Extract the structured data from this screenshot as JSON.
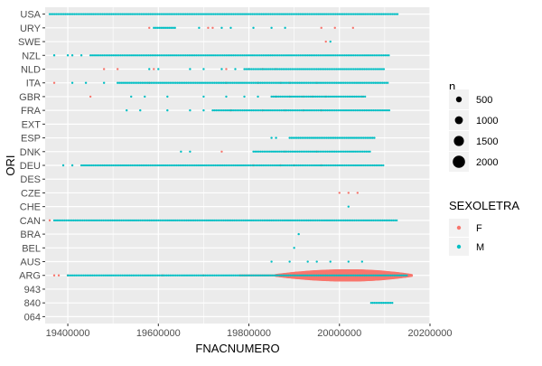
{
  "chart_data": {
    "type": "scatter",
    "xlabel": "FNACNUMERO",
    "ylabel": "ORI",
    "xlim": [
      19350000,
      20200000
    ],
    "x_ticks": [
      19400000,
      19600000,
      19800000,
      20000000,
      20200000
    ],
    "x_tick_labels": [
      "19400000",
      "19600000",
      "19800000",
      "20000000",
      "20200000"
    ],
    "categories": [
      "USA",
      "URY",
      "SWE",
      "NZL",
      "NLD",
      "ITA",
      "GBR",
      "FRA",
      "EXT",
      "ESP",
      "DNK",
      "DEU",
      "DES",
      "CZE",
      "CHE",
      "CAN",
      "BRA",
      "BEL",
      "AUS",
      "ARG",
      "943",
      "840",
      "064"
    ],
    "grid": true,
    "legends": {
      "size": {
        "title": "n",
        "entries": [
          {
            "label": "500",
            "value": 500
          },
          {
            "label": "1000",
            "value": 1000
          },
          {
            "label": "1500",
            "value": 1500
          },
          {
            "label": "2000",
            "value": 2000
          }
        ]
      },
      "color": {
        "title": "SEXOLETRA",
        "entries": [
          {
            "label": "F",
            "color": "#F8766D"
          },
          {
            "label": "M",
            "color": "#00BFC4"
          }
        ]
      },
      "placement": "right"
    },
    "series": [
      {
        "name": "M",
        "color": "#00BFC4",
        "rows": [
          {
            "category": "USA",
            "ranges": [
              [
                19360000,
                20130000
              ]
            ]
          },
          {
            "category": "URY",
            "ranges": [
              [
                19590000,
                19640000
              ]
            ],
            "points": [
              19690000,
              19740000,
              19760000,
              19810000,
              19850000,
              19880000
            ]
          },
          {
            "category": "SWE",
            "points": [
              19980000
            ]
          },
          {
            "category": "NZL",
            "points": [
              19370000,
              19400000,
              19410000,
              19430000
            ],
            "ranges": [
              [
                19450000,
                20110000
              ]
            ]
          },
          {
            "category": "NLD",
            "points": [
              19580000,
              19600000,
              19670000,
              19700000,
              19740000,
              19770000
            ],
            "ranges": [
              [
                19790000,
                20100000
              ]
            ]
          },
          {
            "category": "ITA",
            "points": [
              19410000,
              19440000,
              19480000
            ],
            "ranges": [
              [
                19510000,
                20110000
              ]
            ]
          },
          {
            "category": "GBR",
            "points": [
              19540000,
              19570000,
              19620000,
              19700000,
              19750000,
              19790000,
              19820000
            ],
            "ranges": [
              [
                19850000,
                20060000
              ]
            ]
          },
          {
            "category": "FRA",
            "points": [
              19530000,
              19560000,
              19620000,
              19670000,
              19700000
            ],
            "ranges": [
              [
                19720000,
                20110000
              ]
            ]
          },
          {
            "category": "ESP",
            "points": [
              19850000,
              19860000
            ],
            "ranges": [
              [
                19890000,
                20080000
              ]
            ]
          },
          {
            "category": "DNK",
            "points": [
              19650000,
              19670000
            ],
            "ranges": [
              [
                19810000,
                20070000
              ]
            ]
          },
          {
            "category": "DEU",
            "points": [
              19390000,
              19410000
            ],
            "ranges": [
              [
                19430000,
                20100000
              ]
            ]
          },
          {
            "category": "CHE",
            "points": [
              20020000
            ]
          },
          {
            "category": "CAN",
            "ranges": [
              [
                19370000,
                20130000
              ]
            ]
          },
          {
            "category": "BRA",
            "points": [
              19910000
            ]
          },
          {
            "category": "BEL",
            "points": [
              19900000
            ]
          },
          {
            "category": "AUS",
            "points": [
              19850000,
              19890000,
              19930000,
              19950000,
              19980000,
              20020000,
              20050000
            ]
          },
          {
            "category": "ARG",
            "ranges": [
              [
                19400000,
                20150000
              ]
            ]
          },
          {
            "category": "840",
            "ranges": [
              [
                20070000,
                20120000
              ]
            ]
          }
        ]
      },
      {
        "name": "F",
        "color": "#F8766D",
        "rows": [
          {
            "category": "URY",
            "points": [
              19580000,
              19710000,
              19720000,
              19960000,
              19990000,
              20030000
            ]
          },
          {
            "category": "SWE",
            "points": [
              19970000
            ]
          },
          {
            "category": "NLD",
            "points": [
              19480000,
              19510000,
              19590000,
              19750000,
              19800000,
              19830000,
              19860000
            ]
          },
          {
            "category": "ITA",
            "points": [
              19370000,
              19580000,
              19750000,
              19820000,
              19870000,
              19890000,
              19950000
            ]
          },
          {
            "category": "GBR",
            "points": [
              19450000,
              19860000,
              19890000,
              19920000,
              19940000,
              19970000,
              20050000
            ]
          },
          {
            "category": "FRA",
            "points": [
              19760000,
              19830000,
              19880000,
              19920000,
              19960000
            ]
          },
          {
            "category": "DNK",
            "points": [
              19740000,
              19880000,
              19950000
            ]
          },
          {
            "category": "DEU",
            "points": [
              19810000,
              19870000,
              19900000,
              19960000
            ]
          },
          {
            "category": "CZE",
            "points": [
              20000000,
              20020000,
              20040000
            ]
          },
          {
            "category": "CAN",
            "points": [
              19360000
            ]
          },
          {
            "category": "ARG",
            "points": [
              19370000,
              19380000,
              19400000,
              19610000,
              19700000
            ],
            "ranges": [
              [
                19780000,
                19860000
              ]
            ],
            "clusters": [
              {
                "from": 19860000,
                "to": 20160000,
                "peak": 20020000
              }
            ]
          }
        ]
      }
    ]
  }
}
